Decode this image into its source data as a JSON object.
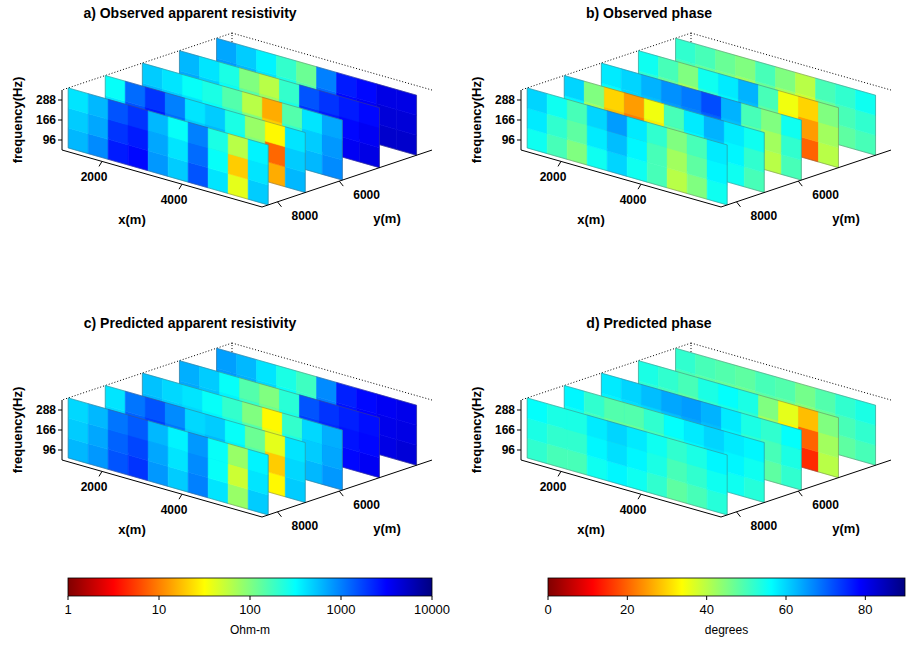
{
  "chart_data": [
    {
      "type": "fence",
      "title": "a) Observed apparent resistivity",
      "x_label": "x(m)",
      "y_label": "y(m)",
      "z_label": "frequency(Hz)",
      "xlim": [
        1000,
        6000
      ],
      "xticks": [
        2000,
        4000
      ],
      "ylim": [
        3000,
        8500
      ],
      "yticks": [
        6000,
        8000
      ],
      "frequencies": [
        96,
        166,
        288
      ],
      "x": [
        1250,
        1750,
        2250,
        2750,
        3250,
        3750,
        4250,
        4750,
        5250,
        5750
      ],
      "log": true,
      "color_range": [
        1,
        10000
      ],
      "slices": [
        {
          "y": 8300,
          "values": [
            [
              600,
              900,
              2500,
              3000,
              800,
              500,
              1500,
              400,
              40,
              500
            ],
            [
              500,
              700,
              2000,
              2500,
              700,
              400,
              1200,
              300,
              20,
              400
            ],
            [
              400,
              600,
              1500,
              2000,
              600,
              300,
              1000,
              250,
              60,
              350
            ]
          ]
        },
        {
          "y": 7100,
          "values": [
            [
              500,
              2000,
              3000,
              1500,
              600,
              800,
              400,
              300,
              15,
              600
            ],
            [
              400,
              1500,
              2500,
              1200,
              500,
              600,
              300,
              100,
              8,
              500
            ],
            [
              300,
              1200,
              2000,
              1000,
              400,
              500,
              250,
              80,
              30,
              400
            ]
          ]
        },
        {
          "y": 5900,
          "values": [
            [
              700,
              600,
              500,
              400,
              300,
              200,
              60,
              300,
              600,
              900
            ],
            [
              600,
              500,
              400,
              300,
              200,
              100,
              20,
              200,
              500,
              800
            ],
            [
              500,
              400,
              300,
              250,
              150,
              60,
              15,
              150,
              400,
              700
            ]
          ]
        },
        {
          "y": 4700,
          "values": [
            [
              800,
              600,
              400,
              200,
              100,
              300,
              2500,
              3000,
              3500,
              4000
            ],
            [
              700,
              500,
              300,
              150,
              80,
              250,
              2000,
              2500,
              3000,
              3500
            ],
            [
              600,
              400,
              250,
              100,
              60,
              200,
              1500,
              2000,
              2500,
              3000
            ]
          ]
        },
        {
          "y": 3500,
          "values": [
            [
              900,
              700,
              500,
              300,
              200,
              1500,
              3500,
              4000,
              5000,
              5000
            ],
            [
              800,
              600,
              400,
              250,
              150,
              1200,
              3000,
              3500,
              4500,
              4500
            ],
            [
              700,
              500,
              350,
              200,
              120,
              1000,
              2500,
              3000,
              4000,
              4000
            ]
          ]
        }
      ]
    },
    {
      "type": "fence",
      "title": "b) Observed phase",
      "x_label": "x(m)",
      "y_label": "y(m)",
      "z_label": "frequency(Hz)",
      "xlim": [
        1000,
        6000
      ],
      "xticks": [
        2000,
        4000
      ],
      "ylim": [
        3000,
        8500
      ],
      "yticks": [
        6000,
        8000
      ],
      "frequencies": [
        96,
        166,
        288
      ],
      "x": [
        1250,
        1750,
        2250,
        2750,
        3250,
        3750,
        4250,
        4750,
        5250,
        5750
      ],
      "color_range": [
        0,
        90
      ],
      "slices": [
        {
          "y": 8300,
          "values": [
            [
              55,
              50,
              45,
              55,
              60,
              55,
              50,
              40,
              45,
              55
            ],
            [
              58,
              52,
              48,
              58,
              62,
              57,
              50,
              42,
              48,
              57
            ],
            [
              60,
              55,
              50,
              60,
              65,
              58,
              52,
              45,
              50,
              58
            ]
          ]
        },
        {
          "y": 7100,
          "values": [
            [
              55,
              40,
              25,
              20,
              30,
              45,
              55,
              60,
              55,
              50
            ],
            [
              57,
              42,
              28,
              22,
              32,
              48,
              57,
              62,
              57,
              52
            ],
            [
              60,
              45,
              30,
              25,
              35,
              50,
              58,
              63,
              58,
              55
            ]
          ]
        },
        {
          "y": 5900,
          "values": [
            [
              55,
              58,
              60,
              62,
              65,
              68,
              60,
              45,
              40,
              50
            ],
            [
              56,
              60,
              62,
              65,
              67,
              70,
              62,
              48,
              42,
              52
            ],
            [
              58,
              60,
              63,
              66,
              68,
              72,
              63,
              50,
              45,
              55
            ]
          ]
        },
        {
          "y": 4700,
          "values": [
            [
              50,
              45,
              40,
              50,
              55,
              60,
              45,
              30,
              20,
              40
            ],
            [
              52,
              47,
              42,
              52,
              57,
              62,
              48,
              33,
              25,
              42
            ],
            [
              55,
              50,
              45,
              55,
              58,
              63,
              50,
              35,
              30,
              45
            ]
          ]
        },
        {
          "y": 3500,
          "values": [
            [
              48,
              45,
              42,
              40,
              45,
              40,
              35,
              45,
              48,
              50
            ],
            [
              50,
              47,
              45,
              42,
              47,
              42,
              38,
              47,
              50,
              52
            ],
            [
              52,
              50,
              47,
              45,
              50,
              45,
              40,
              50,
              52,
              55
            ]
          ]
        }
      ]
    },
    {
      "type": "fence",
      "title": "c) Predicted apparent resistivity",
      "x_label": "x(m)",
      "y_label": "y(m)",
      "z_label": "frequency(Hz)",
      "xlim": [
        1000,
        6000
      ],
      "xticks": [
        2000,
        4000
      ],
      "ylim": [
        3000,
        8500
      ],
      "yticks": [
        6000,
        8000
      ],
      "frequencies": [
        96,
        166,
        288
      ],
      "x": [
        1250,
        1750,
        2250,
        2750,
        3250,
        3750,
        4250,
        4750,
        5250,
        5750
      ],
      "log": true,
      "color_range": [
        1,
        10000
      ],
      "color_ticks": [
        1,
        10,
        100,
        1000,
        10000
      ],
      "color_label": "Ohm-m",
      "slices": [
        {
          "y": 8300,
          "values": [
            [
              600,
              800,
              1500,
              2000,
              800,
              500,
              1000,
              400,
              80,
              500
            ],
            [
              500,
              700,
              1300,
              1700,
              700,
              400,
              900,
              300,
              50,
              400
            ],
            [
              450,
              600,
              1100,
              1400,
              600,
              350,
              800,
              300,
              80,
              350
            ]
          ]
        },
        {
          "y": 7100,
          "values": [
            [
              500,
              1500,
              2000,
              1300,
              600,
              700,
              400,
              250,
              30,
              500
            ],
            [
              450,
              1300,
              1800,
              1100,
              500,
              600,
              350,
              150,
              20,
              450
            ],
            [
              400,
              1100,
              1500,
              900,
              450,
              500,
              300,
              120,
              40,
              400
            ]
          ]
        },
        {
          "y": 5900,
          "values": [
            [
              700,
              600,
              500,
              400,
              300,
              200,
              80,
              300,
              600,
              800
            ],
            [
              600,
              500,
              450,
              350,
              250,
              150,
              40,
              250,
              500,
              700
            ],
            [
              550,
              450,
              400,
              300,
              200,
              100,
              30,
              200,
              450,
              650
            ]
          ]
        },
        {
          "y": 4700,
          "values": [
            [
              800,
              600,
              400,
              250,
              150,
              300,
              2000,
              2500,
              3000,
              3500
            ],
            [
              700,
              550,
              350,
              200,
              120,
              250,
              1800,
              2200,
              2700,
              3000
            ],
            [
              650,
              500,
              300,
              150,
              100,
              220,
              1500,
              2000,
              2400,
              2800
            ]
          ]
        },
        {
          "y": 3500,
          "values": [
            [
              900,
              700,
              500,
              350,
              250,
              1200,
              3000,
              3500,
              4000,
              4500
            ],
            [
              800,
              650,
              450,
              300,
              200,
              1000,
              2700,
              3200,
              3800,
              4000
            ],
            [
              750,
              600,
              400,
              250,
              180,
              900,
              2400,
              3000,
              3500,
              3800
            ]
          ]
        }
      ]
    },
    {
      "type": "fence",
      "title": "d) Predicted phase",
      "x_label": "x(m)",
      "y_label": "y(m)",
      "z_label": "frequency(Hz)",
      "xlim": [
        1000,
        6000
      ],
      "xticks": [
        2000,
        4000
      ],
      "ylim": [
        3000,
        8500
      ],
      "yticks": [
        6000,
        8000
      ],
      "frequencies": [
        96,
        166,
        288
      ],
      "x": [
        1250,
        1750,
        2250,
        2750,
        3250,
        3750,
        4250,
        4750,
        5250,
        5750
      ],
      "color_range": [
        0,
        90
      ],
      "color_ticks": [
        0,
        20,
        40,
        60,
        80
      ],
      "color_label": "degrees",
      "slices": [
        {
          "y": 8300,
          "values": [
            [
              52,
              50,
              50,
              55,
              57,
              55,
              52,
              48,
              50,
              53
            ],
            [
              54,
              52,
              52,
              57,
              59,
              57,
              54,
              50,
              52,
              55
            ],
            [
              56,
              54,
              54,
              58,
              60,
              58,
              55,
              52,
              54,
              57
            ]
          ]
        },
        {
          "y": 7100,
          "values": [
            [
              53,
              48,
              45,
              45,
              48,
              52,
              55,
              57,
              55,
              53
            ],
            [
              55,
              50,
              47,
              47,
              50,
              54,
              57,
              59,
              57,
              55
            ],
            [
              57,
              52,
              49,
              49,
              52,
              56,
              58,
              60,
              58,
              57
            ]
          ]
        },
        {
          "y": 5900,
          "values": [
            [
              55,
              57,
              58,
              60,
              62,
              60,
              55,
              50,
              48,
              52
            ],
            [
              57,
              59,
              60,
              62,
              64,
              62,
              57,
              52,
              50,
              54
            ],
            [
              58,
              60,
              62,
              64,
              65,
              63,
              58,
              54,
              52,
              56
            ]
          ]
        },
        {
          "y": 4700,
          "values": [
            [
              50,
              48,
              46,
              50,
              52,
              50,
              40,
              30,
              15,
              40
            ],
            [
              52,
              50,
              48,
              52,
              54,
              52,
              42,
              33,
              20,
              42
            ],
            [
              54,
              52,
              50,
              54,
              56,
              54,
              45,
              36,
              28,
              45
            ]
          ]
        },
        {
          "y": 3500,
          "values": [
            [
              48,
              46,
              45,
              44,
              46,
              45,
              42,
              45,
              48,
              50
            ],
            [
              50,
              48,
              47,
              46,
              48,
              47,
              44,
              47,
              50,
              52
            ],
            [
              52,
              50,
              49,
              48,
              50,
              49,
              46,
              49,
              52,
              54
            ]
          ]
        }
      ]
    }
  ]
}
